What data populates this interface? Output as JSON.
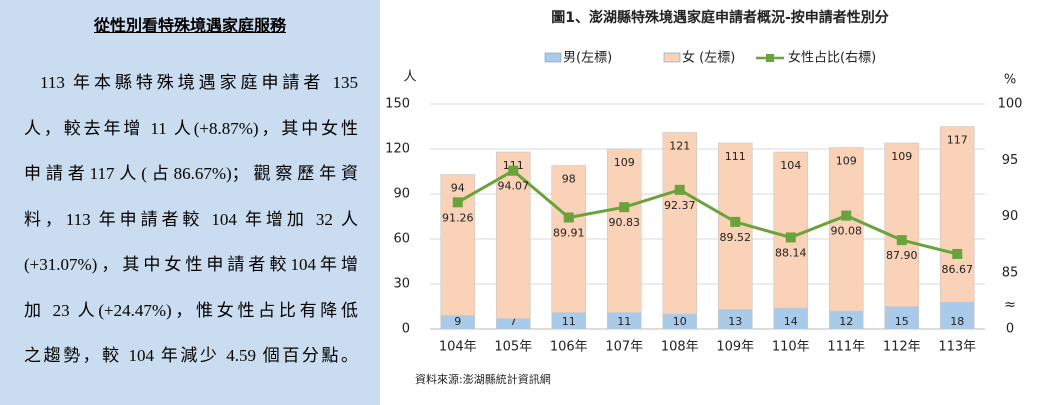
{
  "panel": {
    "title": "從性別看特殊境遇家庭服務",
    "lines": [
      "113 年本縣特殊境遇家庭申請者 135",
      "人，較去年增 11 人(+8.87%)，其中女性",
      "申請者117人(占86.67%)；觀察歷年資",
      "料，113 年申請者較 104 年增加 32 人",
      "(+31.07%)，其中女性申請者較104年增",
      "加 23 人(+24.47%)，惟女性占比有降低",
      "之趨勢，較 104 年減少 4.59 個百分點。"
    ]
  },
  "chart_data": {
    "type": "bar",
    "stacked": true,
    "title": "圖1、澎湖縣特殊境遇家庭申請者概況-按申請者性別分",
    "y_label": "人",
    "y2_label": "%",
    "source": "資料來源:澎湖縣統計資訊網",
    "categories": [
      "104年",
      "105年",
      "106年",
      "107年",
      "108年",
      "109年",
      "110年",
      "111年",
      "112年",
      "113年"
    ],
    "series": [
      {
        "name": "男(左標)",
        "type": "bar",
        "color": "#a9cbe9",
        "values": [
          9,
          7,
          11,
          11,
          10,
          13,
          14,
          12,
          15,
          18
        ]
      },
      {
        "name": "女 (左標)",
        "type": "bar",
        "color": "#f9d2b8",
        "values": [
          94,
          111,
          98,
          109,
          121,
          111,
          104,
          109,
          109,
          117
        ]
      },
      {
        "name": "女性占比(右標)",
        "type": "line",
        "axis": "y2",
        "color": "#6aa23c",
        "values": [
          91.26,
          94.07,
          89.91,
          90.83,
          92.37,
          89.52,
          88.14,
          90.08,
          87.9,
          86.67
        ],
        "value_labels": [
          "91.26",
          "94.07",
          "89.91",
          "90.83",
          "92.37",
          "89.52",
          "88.14",
          "90.08",
          "87.90",
          "86.67"
        ]
      }
    ],
    "ylim": [
      0,
      150
    ],
    "yticks": [
      0,
      30,
      60,
      90,
      120,
      150
    ],
    "y2lim": [
      80,
      100
    ],
    "y2ticks": [
      {
        "value": 80,
        "label": "0"
      },
      85,
      90,
      95,
      100
    ],
    "grid": true
  }
}
